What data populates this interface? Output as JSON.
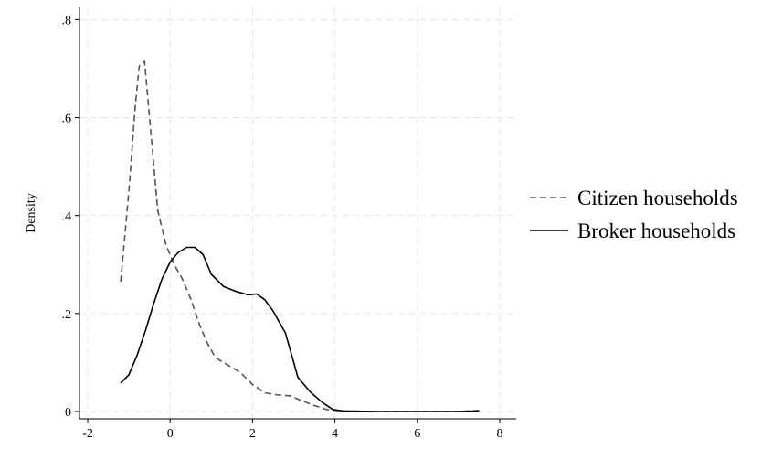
{
  "chart_data": {
    "type": "line",
    "title": "",
    "xlabel": "",
    "ylabel": "Density",
    "xlim": [
      -2.2,
      8.4
    ],
    "ylim": [
      -0.015,
      0.825
    ],
    "xticks": [
      -2,
      0,
      2,
      4,
      6,
      8
    ],
    "xtick_labels": [
      "-2",
      "0",
      "2",
      "4",
      "6",
      "8"
    ],
    "yticks": [
      0,
      0.2,
      0.4,
      0.6,
      0.8
    ],
    "ytick_labels": [
      "0",
      ".2",
      ".4",
      ".6",
      ".8"
    ],
    "grid": true,
    "legend_position": "right",
    "series": [
      {
        "name": "Citizen households",
        "style": "dashed",
        "color": "#555555",
        "points": [
          [
            -1.2,
            0.265
          ],
          [
            -1.0,
            0.45
          ],
          [
            -0.85,
            0.62
          ],
          [
            -0.75,
            0.705
          ],
          [
            -0.62,
            0.715
          ],
          [
            -0.5,
            0.6
          ],
          [
            -0.3,
            0.41
          ],
          [
            -0.1,
            0.34
          ],
          [
            0.1,
            0.3
          ],
          [
            0.3,
            0.27
          ],
          [
            0.5,
            0.23
          ],
          [
            0.7,
            0.18
          ],
          [
            0.9,
            0.14
          ],
          [
            1.1,
            0.11
          ],
          [
            1.4,
            0.095
          ],
          [
            1.7,
            0.08
          ],
          [
            2.0,
            0.055
          ],
          [
            2.3,
            0.038
          ],
          [
            2.6,
            0.034
          ],
          [
            2.9,
            0.032
          ],
          [
            3.2,
            0.022
          ],
          [
            3.5,
            0.012
          ],
          [
            3.8,
            0.004
          ],
          [
            4.2,
            0.001
          ],
          [
            5.0,
            0.0
          ],
          [
            6.0,
            0.0
          ],
          [
            7.0,
            0.0
          ],
          [
            7.5,
            0.002
          ]
        ]
      },
      {
        "name": "Broker households",
        "style": "solid",
        "color": "#000000",
        "points": [
          [
            -1.2,
            0.058
          ],
          [
            -1.0,
            0.075
          ],
          [
            -0.8,
            0.115
          ],
          [
            -0.6,
            0.165
          ],
          [
            -0.4,
            0.22
          ],
          [
            -0.2,
            0.27
          ],
          [
            0.0,
            0.305
          ],
          [
            0.2,
            0.325
          ],
          [
            0.4,
            0.335
          ],
          [
            0.6,
            0.335
          ],
          [
            0.8,
            0.32
          ],
          [
            1.0,
            0.28
          ],
          [
            1.3,
            0.255
          ],
          [
            1.6,
            0.245
          ],
          [
            1.9,
            0.238
          ],
          [
            2.1,
            0.24
          ],
          [
            2.3,
            0.228
          ],
          [
            2.5,
            0.205
          ],
          [
            2.8,
            0.16
          ],
          [
            3.1,
            0.07
          ],
          [
            3.4,
            0.04
          ],
          [
            3.7,
            0.018
          ],
          [
            3.95,
            0.004
          ],
          [
            4.2,
            0.001
          ],
          [
            5.0,
            0.0
          ],
          [
            6.0,
            0.0
          ],
          [
            7.0,
            0.0
          ],
          [
            7.5,
            0.001
          ]
        ]
      }
    ]
  }
}
